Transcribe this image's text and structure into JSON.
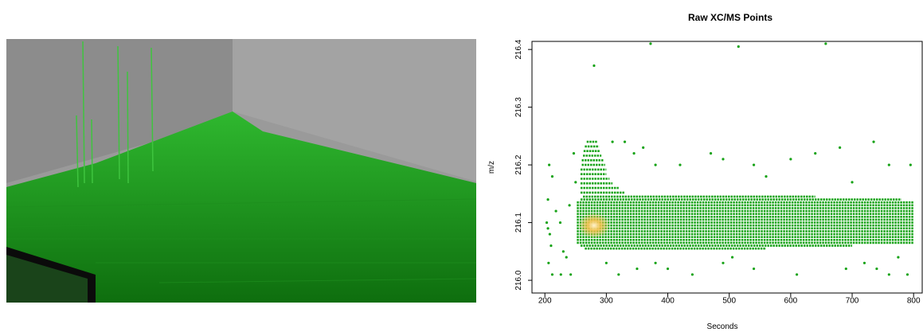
{
  "chart_data": {
    "type": "scatter",
    "title": "Raw XC/MS Points",
    "x_label": "Seconds",
    "y_label": "m/z",
    "color": "#17a317",
    "xlim": [
      179,
      814
    ],
    "ylim": [
      215.978,
      216.414
    ],
    "xticks": [
      200,
      300,
      400,
      500,
      600,
      700,
      800
    ],
    "yticks": [
      {
        "value": 216.0,
        "label": "216.0"
      },
      216.1,
      216.2,
      216.3,
      216.4
    ],
    "x": [
      372,
      515,
      657,
      280,
      207,
      212,
      205,
      203,
      205,
      208,
      210,
      206,
      212,
      218,
      225,
      230,
      240,
      235,
      247,
      250,
      226,
      242,
      310,
      330,
      345,
      360,
      380,
      420,
      470,
      490,
      540,
      600,
      640,
      680,
      735,
      760,
      795,
      560,
      700,
      300,
      320,
      350,
      400,
      440,
      490,
      540,
      610,
      690,
      720,
      740,
      760,
      790,
      775,
      505,
      380
    ],
    "values": [
      216.41,
      216.405,
      216.41,
      216.372,
      216.2,
      216.18,
      216.14,
      216.1,
      216.09,
      216.08,
      216.06,
      216.03,
      216.01,
      216.12,
      216.1,
      216.05,
      216.13,
      216.04,
      216.22,
      216.17,
      216.01,
      216.01,
      216.24,
      216.24,
      216.22,
      216.23,
      216.2,
      216.2,
      216.22,
      216.21,
      216.2,
      216.21,
      216.22,
      216.23,
      216.24,
      216.2,
      216.2,
      216.18,
      216.17,
      216.03,
      216.01,
      216.02,
      216.02,
      216.01,
      216.03,
      216.02,
      216.01,
      216.02,
      216.03,
      216.02,
      216.01,
      216.01,
      216.04,
      216.04,
      216.03
    ],
    "rows": [
      {
        "y": 216.055,
        "x": [
          265,
          560
        ]
      },
      {
        "y": 216.06,
        "x": [
          258,
          700
        ]
      },
      {
        "y": 216.065,
        "x": [
          252,
          800
        ]
      },
      {
        "y": 216.07,
        "x": [
          252,
          800
        ]
      },
      {
        "y": 216.075,
        "x": [
          252,
          800
        ]
      },
      {
        "y": 216.08,
        "x": [
          252,
          800
        ]
      },
      {
        "y": 216.085,
        "x": [
          252,
          800
        ]
      },
      {
        "y": 216.09,
        "x": [
          252,
          800
        ]
      },
      {
        "y": 216.095,
        "x": [
          252,
          800
        ]
      },
      {
        "y": 216.1,
        "x": [
          252,
          800
        ]
      },
      {
        "y": 216.105,
        "x": [
          252,
          800
        ]
      },
      {
        "y": 216.11,
        "x": [
          252,
          800
        ]
      },
      {
        "y": 216.115,
        "x": [
          252,
          800
        ]
      },
      {
        "y": 216.12,
        "x": [
          252,
          800
        ]
      },
      {
        "y": 216.125,
        "x": [
          252,
          800
        ]
      },
      {
        "y": 216.13,
        "x": [
          252,
          800
        ]
      },
      {
        "y": 216.135,
        "x": [
          252,
          800
        ]
      },
      {
        "y": 216.14,
        "x": [
          258,
          780
        ]
      },
      {
        "y": 216.145,
        "x": [
          262,
          640
        ]
      },
      {
        "y": 216.152,
        "x": [
          258,
          330
        ]
      },
      {
        "y": 216.16,
        "x": [
          258,
          320
        ]
      },
      {
        "y": 216.168,
        "x": [
          258,
          310
        ]
      },
      {
        "y": 216.176,
        "x": [
          258,
          305
        ]
      },
      {
        "y": 216.184,
        "x": [
          258,
          300
        ]
      },
      {
        "y": 216.192,
        "x": [
          258,
          300
        ]
      },
      {
        "y": 216.2,
        "x": [
          260,
          298
        ]
      },
      {
        "y": 216.208,
        "x": [
          260,
          295
        ]
      },
      {
        "y": 216.216,
        "x": [
          262,
          292
        ]
      },
      {
        "y": 216.224,
        "x": [
          263,
          290
        ]
      },
      {
        "y": 216.232,
        "x": [
          265,
          288
        ]
      },
      {
        "y": 216.24,
        "x": [
          268,
          285
        ]
      }
    ]
  }
}
